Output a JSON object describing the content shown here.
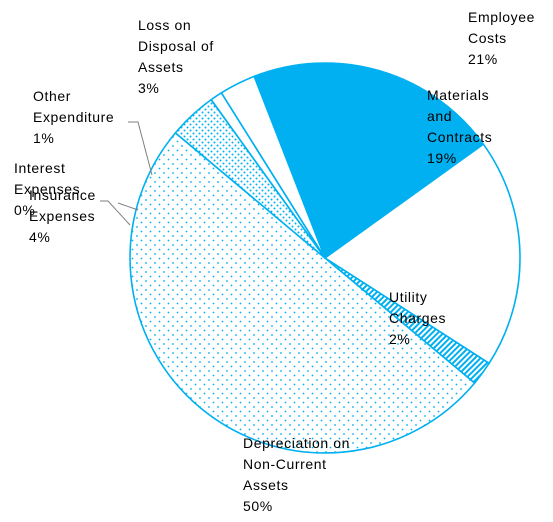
{
  "chart_data": {
    "type": "pie",
    "title": "",
    "slices": [
      {
        "label": [
          "Employee",
          "Costs"
        ],
        "value": 21,
        "value_label": "21%",
        "color": "#00B0F0",
        "fill": "solid"
      },
      {
        "label": [
          "Materials",
          "and",
          "Contracts"
        ],
        "value": 19,
        "value_label": "19%",
        "color": "#FFFFFF",
        "fill": "none"
      },
      {
        "label": [
          "Utility",
          "Charges"
        ],
        "value": 2,
        "value_label": "2%",
        "color": "#00B0F0",
        "fill": "diagonal-hatch"
      },
      {
        "label": [
          "Depreciation on",
          "Non-Current",
          "Assets"
        ],
        "value": 50,
        "value_label": "50%",
        "color": "#00B0F0",
        "fill": "sparse-dots"
      },
      {
        "label": [
          "Insurance",
          "Expenses"
        ],
        "value": 4,
        "value_label": "4%",
        "color": "#00B0F0",
        "fill": "dense-dots"
      },
      {
        "label": [
          "Interest",
          "Expenses"
        ],
        "value": 0,
        "value_label": "0%",
        "color": "#00B0F0",
        "fill": "none"
      },
      {
        "label": [
          "Other",
          "Expenditure"
        ],
        "value": 1,
        "value_label": "1%",
        "color": "#00B0F0",
        "fill": "none"
      },
      {
        "label": [
          "Loss on",
          "Disposal of",
          "Assets"
        ],
        "value": 3,
        "value_label": "3%",
        "color": "#00B0F0",
        "fill": "none"
      }
    ],
    "legend": "none",
    "data_labels": "outside/inside with leader lines"
  }
}
